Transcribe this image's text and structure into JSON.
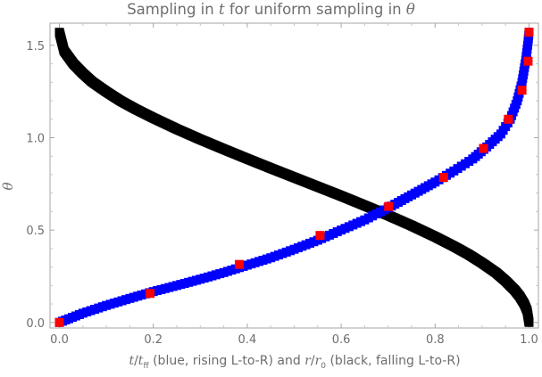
{
  "chart_data": {
    "type": "scatter",
    "title": "Sampling in t for uniform sampling in θ",
    "title_parts": {
      "before": "Sampling in ",
      "var_t": "t",
      "middle": " for uniform sampling in ",
      "var_theta": "θ"
    },
    "xlabel": "t/t_ff (blue, rising L-to-R) and r/r_0 (black, falling L-to-R)",
    "xlabel_parts": {
      "t": "t",
      "slash1": "/",
      "t2": "t",
      "ff": "ff",
      "mid": " (blue, rising L-to-R) and ",
      "r": "r",
      "slash2": "/",
      "r2": "r",
      "zero": "0",
      "end": " (black, falling L-to-R)"
    },
    "ylabel": "θ",
    "xlim": [
      -0.02,
      1.02
    ],
    "ylim": [
      -0.03,
      1.62
    ],
    "x_ticks": [
      {
        "value": 0.0,
        "label": "0.0"
      },
      {
        "value": 0.2,
        "label": "0.2"
      },
      {
        "value": 0.4,
        "label": "0.4"
      },
      {
        "value": 0.6,
        "label": "0.6"
      },
      {
        "value": 0.8,
        "label": "0.8"
      },
      {
        "value": 1.0,
        "label": "1.0"
      }
    ],
    "y_ticks": [
      {
        "value": 0.0,
        "label": "0.0"
      },
      {
        "value": 0.5,
        "label": "0.5"
      },
      {
        "value": 1.0,
        "label": "1.0"
      },
      {
        "value": 1.5,
        "label": "1.5"
      }
    ],
    "series": [
      {
        "color": "#000000",
        "points": [
          [
            0.0,
            1.5708
          ],
          [
            0.01,
            1.47
          ],
          [
            0.03,
            1.4
          ],
          [
            0.05,
            1.348
          ],
          [
            0.07,
            1.302
          ],
          [
            0.1,
            1.249
          ],
          [
            0.13,
            1.2
          ],
          [
            0.16,
            1.158
          ],
          [
            0.2,
            1.107
          ],
          [
            0.25,
            1.047
          ],
          [
            0.3,
            0.991
          ],
          [
            0.35,
            0.938
          ],
          [
            0.4,
            0.886
          ],
          [
            0.45,
            0.835
          ],
          [
            0.5,
            0.785
          ],
          [
            0.55,
            0.735
          ],
          [
            0.6,
            0.685
          ],
          [
            0.65,
            0.633
          ],
          [
            0.7,
            0.58
          ],
          [
            0.75,
            0.524
          ],
          [
            0.8,
            0.464
          ],
          [
            0.84,
            0.412
          ],
          [
            0.87,
            0.37
          ],
          [
            0.9,
            0.322
          ],
          [
            0.93,
            0.269
          ],
          [
            0.95,
            0.225
          ],
          [
            0.97,
            0.174
          ],
          [
            0.98,
            0.142
          ],
          [
            0.99,
            0.1
          ],
          [
            0.996,
            0.063
          ],
          [
            1.0,
            0.0
          ]
        ]
      },
      {
        "color": "#0000ff",
        "points": [
          [
            0.0,
            0.0
          ],
          [
            0.02,
            0.02
          ],
          [
            0.05,
            0.05
          ],
          [
            0.1,
            0.092
          ],
          [
            0.15,
            0.13
          ],
          [
            0.2,
            0.167
          ],
          [
            0.25,
            0.2
          ],
          [
            0.3,
            0.234
          ],
          [
            0.35,
            0.27
          ],
          [
            0.4,
            0.31
          ],
          [
            0.45,
            0.35
          ],
          [
            0.5,
            0.396
          ],
          [
            0.55,
            0.445
          ],
          [
            0.6,
            0.5
          ],
          [
            0.65,
            0.555
          ],
          [
            0.7,
            0.62
          ],
          [
            0.75,
            0.69
          ],
          [
            0.8,
            0.76
          ],
          [
            0.84,
            0.82
          ],
          [
            0.88,
            0.885
          ],
          [
            0.91,
            0.95
          ],
          [
            0.94,
            1.02
          ],
          [
            0.96,
            1.1
          ],
          [
            0.975,
            1.2
          ],
          [
            0.985,
            1.3
          ],
          [
            0.993,
            1.42
          ],
          [
            0.998,
            1.52
          ],
          [
            1.0,
            1.5708
          ]
        ]
      },
      {
        "color": "#ff0000",
        "points": [
          [
            0.0,
            0.0
          ],
          [
            0.193,
            0.157
          ],
          [
            0.383,
            0.314
          ],
          [
            0.555,
            0.471
          ],
          [
            0.701,
            0.628
          ],
          [
            0.818,
            0.785
          ],
          [
            0.903,
            0.942
          ],
          [
            0.956,
            1.1
          ],
          [
            0.985,
            1.257
          ],
          [
            0.998,
            1.414
          ],
          [
            1.0,
            1.5708
          ]
        ]
      }
    ]
  }
}
